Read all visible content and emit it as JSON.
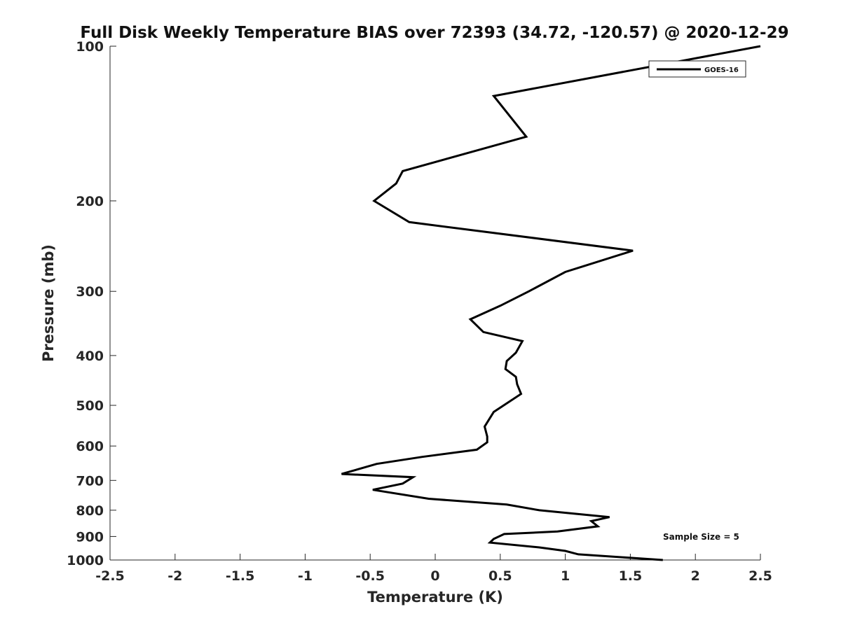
{
  "chart_data": {
    "type": "line",
    "title": "Full Disk Weekly Temperature BIAS over 72393 (34.72, -120.57) @ 2020-12-29",
    "xlabel": "Temperature (K)",
    "ylabel": "Pressure (mb)",
    "xlim": [
      -2.5,
      2.5
    ],
    "ylim": [
      1000,
      100
    ],
    "y_scale": "log",
    "grid": false,
    "legend_position": "top-right",
    "x_ticks": [
      -2.5,
      -2,
      -1.5,
      -1,
      -0.5,
      0,
      0.5,
      1,
      1.5,
      2,
      2.5
    ],
    "x_tick_labels": [
      "-2.5",
      "-2",
      "-1.5",
      "-1",
      "-0.5",
      "0",
      "0.5",
      "1",
      "1.5",
      "2",
      "2.5"
    ],
    "y_ticks": [
      100,
      200,
      300,
      400,
      500,
      600,
      700,
      800,
      900,
      1000
    ],
    "y_tick_labels": [
      "100",
      "200",
      "300",
      "400",
      "500",
      "600",
      "700",
      "800",
      "900",
      "1000"
    ],
    "series": [
      {
        "name": "GOES-16",
        "color": "#000000",
        "x": [
          2.5,
          0.45,
          0.7,
          -0.25,
          -0.3,
          -0.47,
          -0.2,
          1.52,
          1.0,
          0.72,
          0.5,
          0.27,
          0.37,
          0.67,
          0.62,
          0.55,
          0.54,
          0.62,
          0.63,
          0.66,
          0.45,
          0.38,
          0.4,
          0.4,
          0.32,
          -0.1,
          -0.45,
          -0.72,
          -0.17,
          -0.25,
          -0.48,
          -0.05,
          0.55,
          0.8,
          1.34,
          1.2,
          1.25,
          0.94,
          0.53,
          0.45,
          0.42,
          0.8,
          1.0,
          1.1,
          1.75
        ],
        "y": [
          100,
          125,
          150,
          175,
          185,
          200,
          220,
          250,
          275,
          300,
          320,
          340,
          360,
          375,
          395,
          410,
          425,
          440,
          455,
          475,
          515,
          550,
          575,
          590,
          610,
          630,
          650,
          680,
          690,
          710,
          730,
          760,
          780,
          800,
          825,
          840,
          860,
          880,
          890,
          910,
          925,
          945,
          960,
          975,
          1000
        ]
      }
    ],
    "legend": [
      "GOES-16"
    ],
    "annotation": "Sample Size = 5"
  }
}
